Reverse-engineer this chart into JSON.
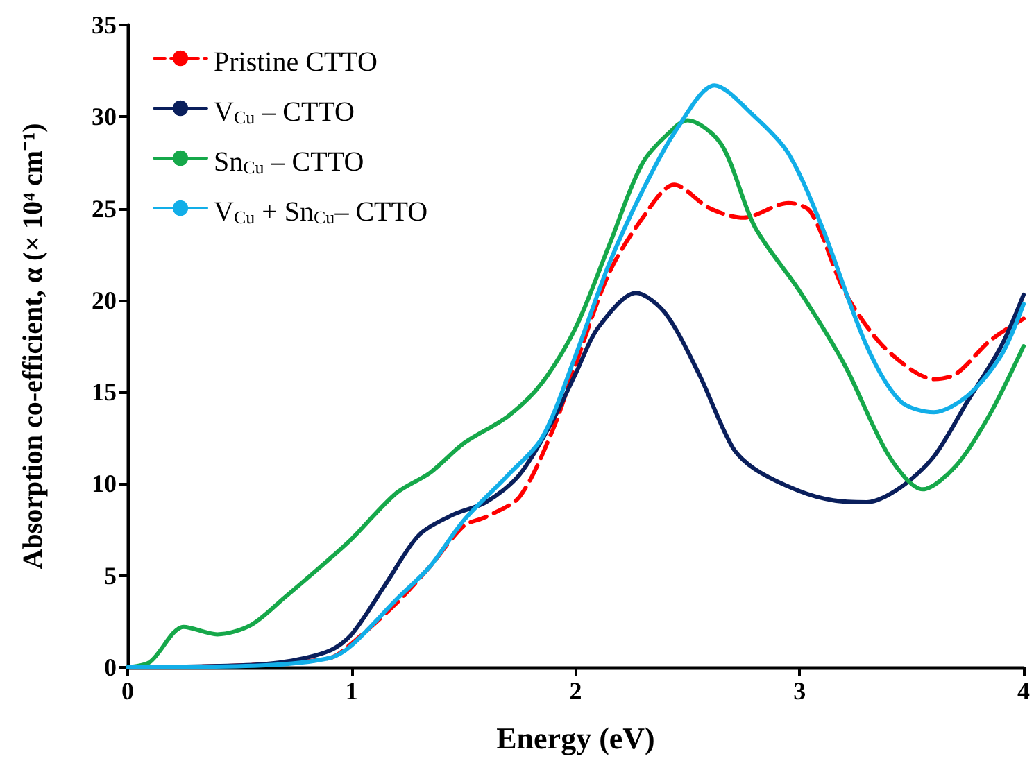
{
  "chart_data": {
    "type": "line",
    "xlabel": "Energy (eV)",
    "ylabel": "Absorption co-efficient, α (× 10⁴ cm⁻¹)",
    "xlim": [
      0,
      4
    ],
    "xticks": [
      0,
      1,
      2,
      3,
      4
    ],
    "ylim": [
      0,
      35
    ],
    "yticks": [
      0,
      5,
      10,
      15,
      20,
      25,
      30,
      35
    ],
    "grid": false,
    "legend": "top left",
    "marker": "none",
    "series": [
      {
        "name": "Pristine CTTO",
        "color": "#ff0000",
        "line_style": "dashed",
        "x": [
          0,
          0.5,
          0.9,
          1.0,
          1.2,
          1.35,
          1.5,
          1.6,
          1.75,
          1.9,
          2.0,
          2.15,
          2.3,
          2.44,
          2.6,
          2.75,
          2.95,
          3.05,
          3.2,
          3.35,
          3.5,
          3.6,
          3.7,
          3.85,
          4.0
        ],
        "values": [
          0,
          0.1,
          0.5,
          1.3,
          3.5,
          5.5,
          7.7,
          8.2,
          9.3,
          13,
          16.5,
          21.5,
          24.5,
          26.3,
          25,
          24.5,
          25.3,
          24.8,
          20.5,
          17.8,
          16.2,
          15.7,
          16,
          17.8,
          19
        ]
      },
      {
        "name": "V$_{Cu}$ – CTTO",
        "color": "#0a1f5c",
        "line_style": "solid",
        "x": [
          0,
          0.5,
          0.7,
          0.9,
          1.0,
          1.15,
          1.3,
          1.45,
          1.6,
          1.75,
          1.9,
          2.0,
          2.1,
          2.27,
          2.4,
          2.55,
          2.7,
          2.8,
          3.0,
          3.15,
          3.3,
          3.45,
          3.6,
          3.75,
          3.9,
          4.0
        ],
        "values": [
          0,
          0.1,
          0.3,
          0.9,
          1.8,
          4.5,
          7.2,
          8.3,
          9,
          10.5,
          13.5,
          16,
          18.5,
          20.4,
          19.3,
          16,
          12,
          10.8,
          9.6,
          9.1,
          9.0,
          9.8,
          11.5,
          14.5,
          17.5,
          20.3
        ]
      },
      {
        "name": "Sn$_{Cu}$ – CTTO",
        "color": "#16a84a",
        "line_style": "solid",
        "x": [
          0,
          0.1,
          0.25,
          0.4,
          0.55,
          0.7,
          0.9,
          1.0,
          1.2,
          1.35,
          1.5,
          1.7,
          1.85,
          2.0,
          2.15,
          2.3,
          2.45,
          2.5,
          2.65,
          2.8,
          3.0,
          3.2,
          3.4,
          3.55,
          3.7,
          3.85,
          4.0
        ],
        "values": [
          0,
          0.3,
          2.2,
          1.8,
          2.3,
          3.8,
          5.9,
          7,
          9.5,
          10.6,
          12.2,
          13.7,
          15.5,
          18.5,
          23,
          27.5,
          29.5,
          29.8,
          28.5,
          24,
          20.5,
          16.5,
          11.5,
          9.7,
          11,
          13.8,
          17.5
        ]
      },
      {
        "name": "V$_{Cu}$ + Sn$_{Cu}$– CTTO",
        "color": "#12aee8",
        "line_style": "solid",
        "x": [
          0,
          0.6,
          0.9,
          1.0,
          1.2,
          1.35,
          1.5,
          1.7,
          1.85,
          2.0,
          2.15,
          2.3,
          2.45,
          2.62,
          2.8,
          2.95,
          3.1,
          3.3,
          3.45,
          3.6,
          3.75,
          3.9,
          4.0
        ],
        "values": [
          0,
          0.1,
          0.5,
          1.2,
          3.7,
          5.5,
          8,
          10.5,
          12.5,
          17,
          22,
          26,
          29.3,
          31.7,
          30,
          28,
          24,
          17.5,
          14.5,
          13.9,
          14.8,
          17,
          19.8
        ]
      }
    ]
  }
}
